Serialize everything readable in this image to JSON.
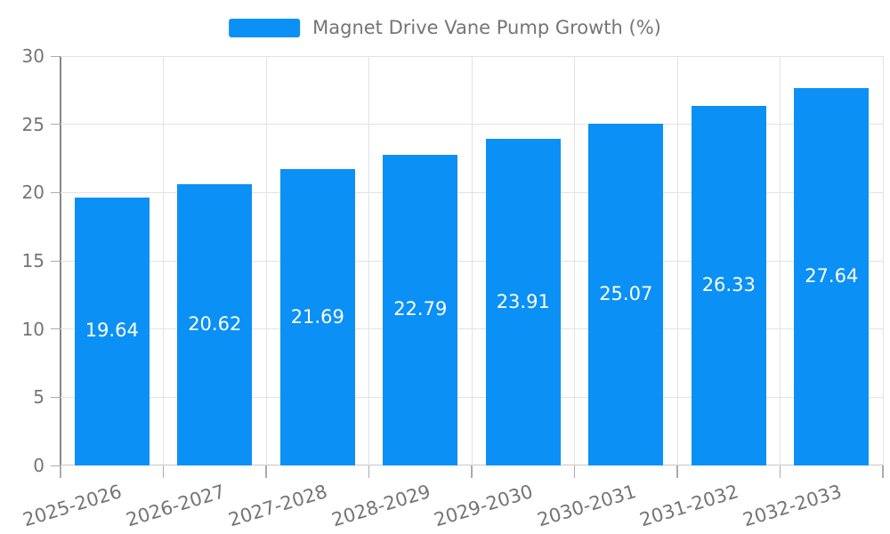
{
  "chart": {
    "legend": {
      "label": "Magnet Drive Vane Pump Growth (%)"
    },
    "colors": {
      "bar": "#0b90f5",
      "grid": "#e2e2e2",
      "y_axis_line": "#878787",
      "x_axis_line": "#c8c8c8",
      "tick": "#ababab",
      "axis_label_text": "#757575",
      "value_label_text": "#ffffff",
      "background": "#ffffff"
    }
  },
  "chart_data": {
    "type": "bar",
    "title": "Magnet Drive Vane Pump Growth (%)",
    "categories": [
      "2025-2026",
      "2026-2027",
      "2027-2028",
      "2028-2029",
      "2029-2030",
      "2030-2031",
      "2031-2032",
      "2032-2033"
    ],
    "values": [
      19.64,
      20.62,
      21.69,
      22.79,
      23.91,
      25.07,
      26.33,
      27.64
    ],
    "value_labels": [
      "19.64",
      "20.62",
      "21.69",
      "22.79",
      "23.91",
      "25.07",
      "26.33",
      "27.64"
    ],
    "xlabel": "",
    "ylabel": "",
    "ylim": [
      0,
      30
    ],
    "yticks": [
      0,
      5,
      10,
      15,
      20,
      25,
      30
    ],
    "grid": true,
    "legend_position": "top-center",
    "value_label_position": "center-of-bar",
    "x_label_rotation_deg": 17
  }
}
